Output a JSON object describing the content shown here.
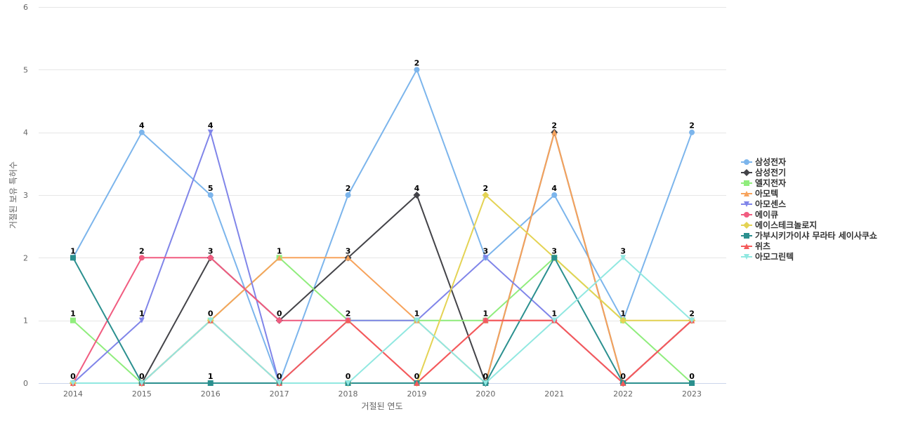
{
  "chart_data": {
    "type": "line",
    "title": "",
    "xlabel": "거절된 연도",
    "ylabel": "거절된 보유 특허수",
    "ylim": [
      0,
      6
    ],
    "yticks": [
      0,
      1,
      2,
      3,
      4,
      5,
      6
    ],
    "categories": [
      "2014",
      "2015",
      "2016",
      "2017",
      "2018",
      "2019",
      "2020",
      "2021",
      "2022",
      "2023"
    ],
    "legend_position": "right",
    "grid": true,
    "series": [
      {
        "name": "삼성전자",
        "color": "#7cb5ec",
        "marker": "circle",
        "values": [
          2,
          4,
          3,
          0,
          3,
          5,
          2,
          3,
          1,
          4
        ]
      },
      {
        "name": "삼성전기",
        "color": "#434348",
        "marker": "diamond",
        "values": [
          0,
          0,
          2,
          1,
          2,
          3,
          0,
          4,
          0,
          1
        ]
      },
      {
        "name": "엘지전자",
        "color": "#90ed7d",
        "marker": "square",
        "values": [
          1,
          0,
          1,
          2,
          1,
          1,
          1,
          2,
          1,
          0
        ]
      },
      {
        "name": "아모텍",
        "color": "#f7a35c",
        "marker": "triangle",
        "values": [
          0,
          0,
          1,
          2,
          2,
          1,
          0,
          4,
          0,
          1
        ]
      },
      {
        "name": "아모센스",
        "color": "#8085e9",
        "marker": "triangle-down",
        "values": [
          0,
          1,
          4,
          0,
          1,
          1,
          2,
          1,
          0,
          1
        ]
      },
      {
        "name": "에이큐",
        "color": "#f15c80",
        "marker": "circle",
        "values": [
          0,
          2,
          2,
          1,
          1,
          0,
          1,
          1,
          0,
          1
        ]
      },
      {
        "name": "에이스테크놀로지",
        "color": "#e4d354",
        "marker": "diamond",
        "values": [
          0,
          0,
          1,
          0,
          0,
          0,
          3,
          2,
          1,
          1
        ]
      },
      {
        "name": "가부시키가이샤 무라타 세이사쿠쇼",
        "color": "#2b908f",
        "marker": "square",
        "values": [
          2,
          0,
          0,
          0,
          0,
          0,
          0,
          2,
          0,
          0
        ]
      },
      {
        "name": "위츠",
        "color": "#f45b5b",
        "marker": "triangle",
        "values": [
          0,
          0,
          1,
          0,
          1,
          0,
          1,
          1,
          0,
          1
        ]
      },
      {
        "name": "아모그린텍",
        "color": "#91e8e1",
        "marker": "triangle-down",
        "values": [
          0,
          0,
          1,
          0,
          0,
          1,
          0,
          1,
          2,
          1
        ]
      }
    ],
    "data_labels": [
      "2",
      "4",
      "4",
      "2",
      "2",
      "5",
      "2",
      "4",
      "2",
      "4",
      "1",
      "2",
      "3",
      "1",
      "3",
      "3",
      "3",
      "3",
      "1",
      "1",
      "0",
      "0",
      "2",
      "1",
      "1",
      "1",
      "1",
      "2",
      "0",
      "0",
      "1",
      "0",
      "0",
      "0",
      "0",
      "0",
      "0"
    ]
  }
}
